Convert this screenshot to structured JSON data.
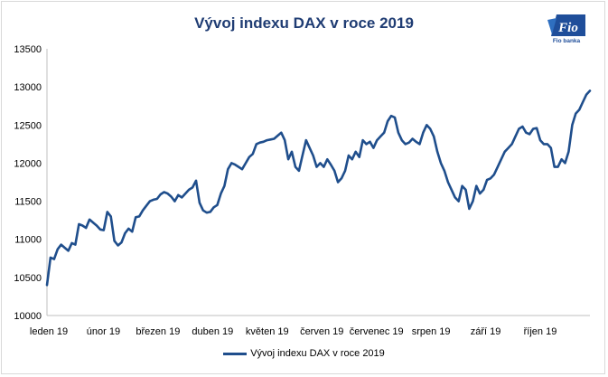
{
  "chart_data": {
    "type": "line",
    "title": "Vývoj indexu DAX v roce 2019",
    "xlabel": "",
    "ylabel": "",
    "ylim": [
      10000,
      13500
    ],
    "yticks": [
      10000,
      10500,
      11000,
      11500,
      12000,
      12500,
      13000,
      13500
    ],
    "xtick_labels": [
      "leden 19",
      "únor 19",
      "březen 19",
      "duben 19",
      "květen 19",
      "červen 19",
      "červenec 19",
      "srpen 19",
      "září 19",
      "říjen 19"
    ],
    "grid": false,
    "legend_position": "bottom",
    "series": [
      {
        "name": "Vývoj indexu DAX v roce 2019",
        "color": "#1f4e8c",
        "values": [
          10400,
          10760,
          10740,
          10870,
          10930,
          10890,
          10850,
          10950,
          10930,
          11200,
          11180,
          11150,
          11260,
          11220,
          11180,
          11130,
          11120,
          11360,
          11300,
          10980,
          10920,
          10960,
          11080,
          11140,
          11100,
          11290,
          11300,
          11380,
          11440,
          11500,
          11520,
          11530,
          11590,
          11620,
          11600,
          11560,
          11500,
          11580,
          11550,
          11600,
          11650,
          11680,
          11770,
          11480,
          11380,
          11350,
          11360,
          11420,
          11450,
          11600,
          11700,
          11920,
          12000,
          11980,
          11950,
          11920,
          12000,
          12080,
          12120,
          12250,
          12270,
          12280,
          12300,
          12310,
          12320,
          12360,
          12400,
          12300,
          12050,
          12150,
          11950,
          11900,
          12100,
          12300,
          12200,
          12100,
          11950,
          12000,
          11950,
          12050,
          11980,
          11900,
          11750,
          11800,
          11900,
          12100,
          12050,
          12150,
          12080,
          12300,
          12250,
          12280,
          12200,
          12300,
          12350,
          12400,
          12550,
          12620,
          12600,
          12400,
          12300,
          12250,
          12270,
          12320,
          12280,
          12250,
          12400,
          12500,
          12450,
          12350,
          12150,
          12000,
          11900,
          11750,
          11650,
          11550,
          11500,
          11700,
          11650,
          11400,
          11500,
          11700,
          11600,
          11650,
          11780,
          11800,
          11850,
          11950,
          12050,
          12150,
          12200,
          12250,
          12350,
          12450,
          12480,
          12400,
          12380,
          12450,
          12460,
          12300,
          12250,
          12250,
          12200,
          11950,
          11950,
          12050,
          12000,
          12150,
          12500,
          12650,
          12700,
          12800,
          12900,
          12950
        ]
      }
    ]
  }
}
